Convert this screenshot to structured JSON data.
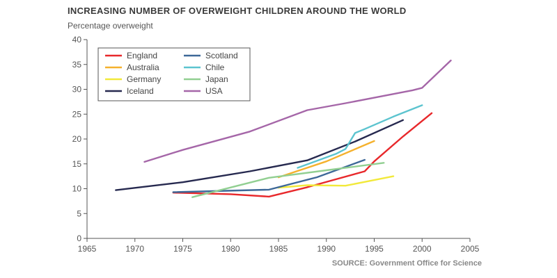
{
  "header": {
    "title": "INCREASING NUMBER OF OVERWEIGHT CHILDREN AROUND THE WORLD",
    "subtitle": "Percentage overweight",
    "source": "SOURCE: Government Office for Science"
  },
  "chart_data": {
    "type": "line",
    "title": "INCREASING NUMBER OF OVERWEIGHT CHILDREN AROUND THE WORLD",
    "ylabel": "Percentage overweight",
    "xlabel": "",
    "xlim": [
      1965,
      2005
    ],
    "ylim": [
      0,
      40
    ],
    "xticks": [
      1965,
      1970,
      1975,
      1980,
      1985,
      1990,
      1995,
      2000,
      2005
    ],
    "yticks": [
      0,
      5,
      10,
      15,
      20,
      25,
      30,
      35,
      40
    ],
    "grid": false,
    "legend_position": "top-left",
    "series": [
      {
        "name": "England",
        "color": "#e8282b",
        "points": [
          [
            1974,
            9.2
          ],
          [
            1980,
            8.9
          ],
          [
            1984,
            8.4
          ],
          [
            1988,
            10.3
          ],
          [
            1994,
            13.5
          ],
          [
            1995,
            15.5
          ],
          [
            1998,
            20.5
          ],
          [
            2001,
            25.2
          ]
        ]
      },
      {
        "name": "Australia",
        "color": "#f5b12d",
        "points": [
          [
            1985,
            12.3
          ],
          [
            1990,
            15.5
          ],
          [
            1995,
            19.6
          ]
        ]
      },
      {
        "name": "Germany",
        "color": "#f2e93a",
        "points": [
          [
            1985,
            10.2
          ],
          [
            1988,
            10.7
          ],
          [
            1992,
            10.6
          ],
          [
            1997,
            12.5
          ]
        ]
      },
      {
        "name": "Iceland",
        "color": "#26294f",
        "points": [
          [
            1968,
            9.7
          ],
          [
            1975,
            11.3
          ],
          [
            1982,
            13.5
          ],
          [
            1988,
            15.7
          ],
          [
            1993,
            19.5
          ],
          [
            1998,
            23.8
          ]
        ]
      },
      {
        "name": "Scotland",
        "color": "#3d6898",
        "points": [
          [
            1974,
            9.3
          ],
          [
            1984,
            9.8
          ],
          [
            1989,
            12.3
          ],
          [
            1994,
            15.8
          ]
        ]
      },
      {
        "name": "Chile",
        "color": "#5cc4cf",
        "points": [
          [
            1987,
            14.2
          ],
          [
            1991,
            17.0
          ],
          [
            1992,
            18.0
          ],
          [
            1993,
            21.2
          ],
          [
            1994,
            22.0
          ],
          [
            1997,
            24.5
          ],
          [
            2000,
            26.8
          ]
        ]
      },
      {
        "name": "Japan",
        "color": "#91cf91",
        "points": [
          [
            1976,
            8.3
          ],
          [
            1984,
            12.2
          ],
          [
            1990,
            13.7
          ],
          [
            1996,
            15.2
          ]
        ]
      },
      {
        "name": "USA",
        "color": "#a566a8",
        "points": [
          [
            1971,
            15.4
          ],
          [
            1975,
            17.8
          ],
          [
            1982,
            21.5
          ],
          [
            1988,
            25.8
          ],
          [
            1992,
            27.2
          ],
          [
            1999,
            29.8
          ],
          [
            2000,
            30.3
          ],
          [
            2003,
            35.8
          ]
        ]
      }
    ]
  }
}
